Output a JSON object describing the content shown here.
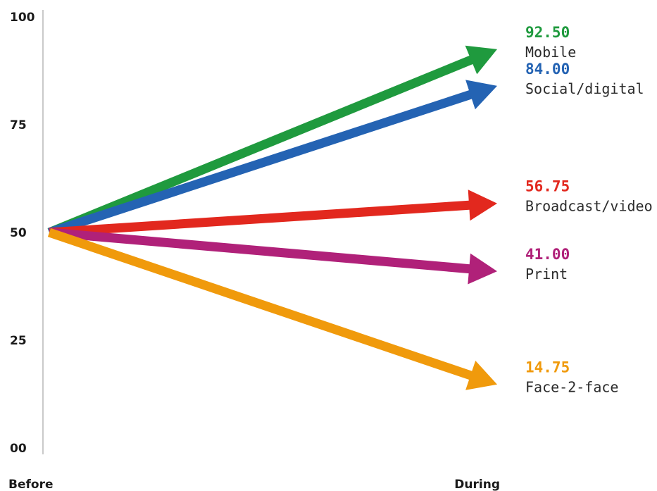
{
  "chart_data": {
    "type": "line",
    "x": [
      "Before",
      "During"
    ],
    "yticks": [
      "00",
      "25",
      "50",
      "75",
      "100"
    ],
    "ylim": [
      0,
      100
    ],
    "grid": false,
    "legend": "right",
    "series": [
      {
        "name": "Mobile",
        "values": [
          50,
          92.5
        ],
        "label": "92.50",
        "color": "#1f9a3e"
      },
      {
        "name": "Social/digital",
        "values": [
          50,
          84.0
        ],
        "label": "84.00",
        "color": "#2463b3"
      },
      {
        "name": "Broadcast/video",
        "values": [
          50,
          56.75
        ],
        "label": "56.75",
        "color": "#e2281e"
      },
      {
        "name": "Print",
        "values": [
          50,
          41.0
        ],
        "label": "41.00",
        "color": "#b02179"
      },
      {
        "name": "Face-2-face",
        "values": [
          50,
          14.75
        ],
        "label": "14.75",
        "color": "#f09a0c"
      }
    ]
  }
}
